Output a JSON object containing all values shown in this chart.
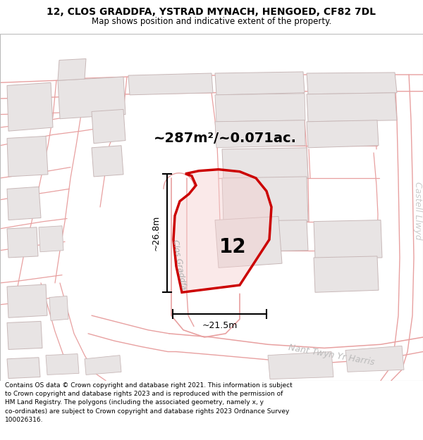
{
  "title": "12, CLOS GRADDFA, YSTRAD MYNACH, HENGOED, CF82 7DL",
  "subtitle": "Map shows position and indicative extent of the property.",
  "footer": "Contains OS data © Crown copyright and database right 2021. This information is subject to Crown copyright and database rights 2023 and is reproduced with the permission of HM Land Registry. The polygons (including the associated geometry, namely x, y co-ordinates) are subject to Crown copyright and database rights 2023 Ordnance Survey 100026316.",
  "area_label": "~287m²/~0.071ac.",
  "property_number": "12",
  "dim_width": "~21.5m",
  "dim_height": "~26.8m",
  "map_bg": "#ffffff",
  "road_line_color": "#e8a0a0",
  "bldg_fill": "#e8e4e4",
  "bldg_edge": "#c8b8b8",
  "prop_fill": "#f5d0d0",
  "prop_edge": "#cc0000",
  "prop_edge_width": 2.5,
  "right_label": "Castell Llwyd",
  "road_label_1": "Clos Graddfa",
  "road_label_2": "Nant Twyn Yr Harris",
  "title_fontsize": 10,
  "subtitle_fontsize": 8.5,
  "area_fontsize": 14,
  "number_fontsize": 20,
  "dim_fontsize": 9,
  "road_label_fontsize": 9,
  "side_label_fontsize": 9,
  "footer_fontsize": 6.5
}
